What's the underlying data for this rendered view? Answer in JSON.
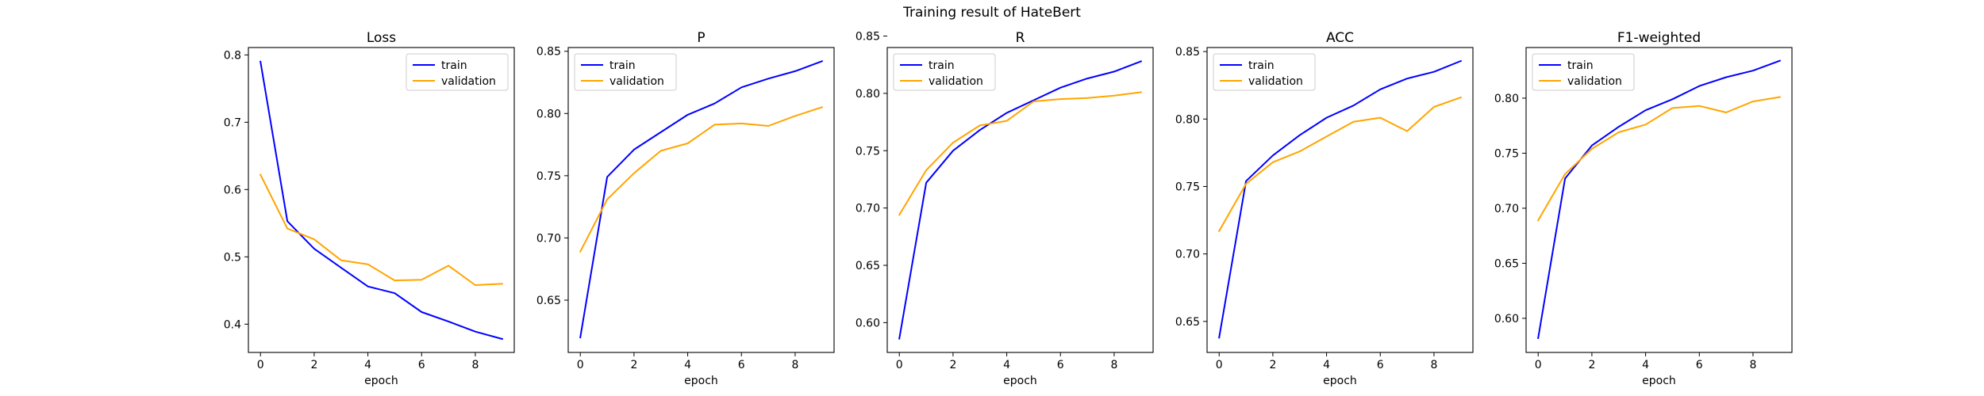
{
  "figure": {
    "title": "Training result of HateBert"
  },
  "colors": {
    "train": "#0000ff",
    "validation": "#ffa500"
  },
  "chart_data": [
    {
      "type": "line",
      "title": "Loss",
      "xlabel": "epoch",
      "ylabel": "",
      "x": [
        0,
        1,
        2,
        3,
        4,
        5,
        6,
        7,
        8,
        9
      ],
      "xticks": [
        0,
        2,
        4,
        6,
        8
      ],
      "xlim": [
        -0.45,
        9.45
      ],
      "yticks": [
        0.4,
        0.5,
        0.6,
        0.7,
        0.8
      ],
      "ylim": [
        0.358,
        0.811
      ],
      "legend": "top-right",
      "series": [
        {
          "name": "train",
          "color": "#0000ff",
          "values": [
            0.79,
            0.553,
            0.512,
            0.484,
            0.456,
            0.446,
            0.418,
            0.404,
            0.389,
            0.378
          ]
        },
        {
          "name": "validation",
          "color": "#ffa500",
          "values": [
            0.622,
            0.542,
            0.526,
            0.495,
            0.489,
            0.465,
            0.466,
            0.487,
            0.458,
            0.46
          ]
        }
      ]
    },
    {
      "type": "line",
      "title": "P",
      "xlabel": "epoch",
      "ylabel": "",
      "x": [
        0,
        1,
        2,
        3,
        4,
        5,
        6,
        7,
        8,
        9
      ],
      "xticks": [
        0,
        2,
        4,
        6,
        8
      ],
      "xlim": [
        -0.45,
        9.45
      ],
      "yticks": [
        0.65,
        0.7,
        0.75,
        0.8,
        0.85
      ],
      "ylim": [
        0.608,
        0.853
      ],
      "legend": "top-left",
      "series": [
        {
          "name": "train",
          "color": "#0000ff",
          "values": [
            0.62,
            0.749,
            0.771,
            0.785,
            0.799,
            0.808,
            0.821,
            0.828,
            0.834,
            0.842
          ]
        },
        {
          "name": "validation",
          "color": "#ffa500",
          "values": [
            0.689,
            0.731,
            0.752,
            0.77,
            0.776,
            0.791,
            0.792,
            0.79,
            0.798,
            0.805
          ]
        }
      ]
    },
    {
      "type": "line",
      "title": "R",
      "xlabel": "epoch",
      "ylabel": "",
      "x": [
        0,
        1,
        2,
        3,
        4,
        5,
        6,
        7,
        8,
        9
      ],
      "xticks": [
        0,
        2,
        4,
        6,
        8
      ],
      "xlim": [
        -0.45,
        9.45
      ],
      "yticks": [
        0.6,
        0.65,
        0.7,
        0.75,
        0.8,
        0.85
      ],
      "ylim": [
        0.574,
        0.84
      ],
      "legend": "top-left",
      "series": [
        {
          "name": "train",
          "color": "#0000ff",
          "values": [
            0.586,
            0.722,
            0.75,
            0.768,
            0.783,
            0.794,
            0.805,
            0.813,
            0.819,
            0.828
          ]
        },
        {
          "name": "validation",
          "color": "#ffa500",
          "values": [
            0.694,
            0.733,
            0.757,
            0.772,
            0.776,
            0.793,
            0.795,
            0.796,
            0.798,
            0.801
          ]
        }
      ]
    },
    {
      "type": "line",
      "title": "ACC",
      "xlabel": "epoch",
      "ylabel": "",
      "x": [
        0,
        1,
        2,
        3,
        4,
        5,
        6,
        7,
        8,
        9
      ],
      "xticks": [
        0,
        2,
        4,
        6,
        8
      ],
      "xlim": [
        -0.45,
        9.45
      ],
      "yticks": [
        0.65,
        0.7,
        0.75,
        0.8,
        0.85
      ],
      "ylim": [
        0.627,
        0.853
      ],
      "legend": "top-left",
      "series": [
        {
          "name": "train",
          "color": "#0000ff",
          "values": [
            0.638,
            0.754,
            0.773,
            0.788,
            0.801,
            0.81,
            0.822,
            0.83,
            0.835,
            0.843
          ]
        },
        {
          "name": "validation",
          "color": "#ffa500",
          "values": [
            0.717,
            0.752,
            0.768,
            0.776,
            0.787,
            0.798,
            0.801,
            0.791,
            0.809,
            0.816
          ]
        }
      ]
    },
    {
      "type": "line",
      "title": "F1-weighted",
      "xlabel": "epoch",
      "ylabel": "",
      "x": [
        0,
        1,
        2,
        3,
        4,
        5,
        6,
        7,
        8,
        9
      ],
      "xticks": [
        0,
        2,
        4,
        6,
        8
      ],
      "xlim": [
        -0.45,
        9.45
      ],
      "yticks": [
        0.6,
        0.65,
        0.7,
        0.75,
        0.8
      ],
      "ylim": [
        0.569,
        0.846
      ],
      "legend": "top-left",
      "series": [
        {
          "name": "train",
          "color": "#0000ff",
          "values": [
            0.582,
            0.727,
            0.757,
            0.774,
            0.789,
            0.799,
            0.811,
            0.819,
            0.825,
            0.834
          ]
        },
        {
          "name": "validation",
          "color": "#ffa500",
          "values": [
            0.689,
            0.731,
            0.754,
            0.769,
            0.776,
            0.791,
            0.793,
            0.787,
            0.797,
            0.801
          ]
        }
      ]
    }
  ]
}
